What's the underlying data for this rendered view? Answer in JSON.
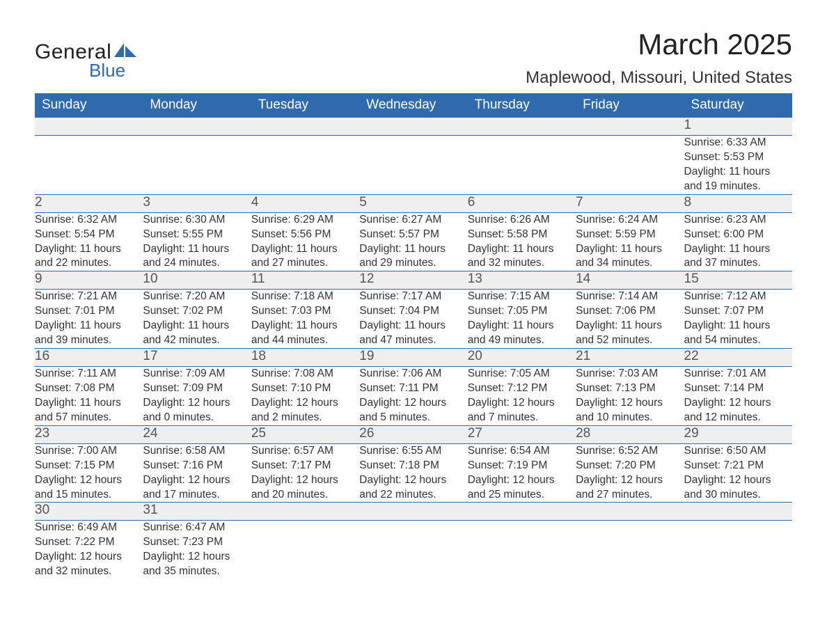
{
  "logo": {
    "primary": "General",
    "secondary": "Blue",
    "shape_color": "#2f6bad"
  },
  "title": "March 2025",
  "location": "Maplewood, Missouri, United States",
  "day_headers": [
    "Sunday",
    "Monday",
    "Tuesday",
    "Wednesday",
    "Thursday",
    "Friday",
    "Saturday"
  ],
  "colors": {
    "header_bg": "#2f6bad",
    "header_text": "#ffffff",
    "daynum_bg": "#efefef",
    "text": "#333333",
    "rule": "#2f6bad"
  },
  "weeks": [
    [
      {
        "n": "",
        "lines": [
          "",
          "",
          "",
          ""
        ]
      },
      {
        "n": "",
        "lines": [
          "",
          "",
          "",
          ""
        ]
      },
      {
        "n": "",
        "lines": [
          "",
          "",
          "",
          ""
        ]
      },
      {
        "n": "",
        "lines": [
          "",
          "",
          "",
          ""
        ]
      },
      {
        "n": "",
        "lines": [
          "",
          "",
          "",
          ""
        ]
      },
      {
        "n": "",
        "lines": [
          "",
          "",
          "",
          ""
        ]
      },
      {
        "n": "1",
        "lines": [
          "Sunrise: 6:33 AM",
          "Sunset: 5:53 PM",
          "Daylight: 11 hours",
          "and 19 minutes."
        ]
      }
    ],
    [
      {
        "n": "2",
        "lines": [
          "Sunrise: 6:32 AM",
          "Sunset: 5:54 PM",
          "Daylight: 11 hours",
          "and 22 minutes."
        ]
      },
      {
        "n": "3",
        "lines": [
          "Sunrise: 6:30 AM",
          "Sunset: 5:55 PM",
          "Daylight: 11 hours",
          "and 24 minutes."
        ]
      },
      {
        "n": "4",
        "lines": [
          "Sunrise: 6:29 AM",
          "Sunset: 5:56 PM",
          "Daylight: 11 hours",
          "and 27 minutes."
        ]
      },
      {
        "n": "5",
        "lines": [
          "Sunrise: 6:27 AM",
          "Sunset: 5:57 PM",
          "Daylight: 11 hours",
          "and 29 minutes."
        ]
      },
      {
        "n": "6",
        "lines": [
          "Sunrise: 6:26 AM",
          "Sunset: 5:58 PM",
          "Daylight: 11 hours",
          "and 32 minutes."
        ]
      },
      {
        "n": "7",
        "lines": [
          "Sunrise: 6:24 AM",
          "Sunset: 5:59 PM",
          "Daylight: 11 hours",
          "and 34 minutes."
        ]
      },
      {
        "n": "8",
        "lines": [
          "Sunrise: 6:23 AM",
          "Sunset: 6:00 PM",
          "Daylight: 11 hours",
          "and 37 minutes."
        ]
      }
    ],
    [
      {
        "n": "9",
        "lines": [
          "Sunrise: 7:21 AM",
          "Sunset: 7:01 PM",
          "Daylight: 11 hours",
          "and 39 minutes."
        ]
      },
      {
        "n": "10",
        "lines": [
          "Sunrise: 7:20 AM",
          "Sunset: 7:02 PM",
          "Daylight: 11 hours",
          "and 42 minutes."
        ]
      },
      {
        "n": "11",
        "lines": [
          "Sunrise: 7:18 AM",
          "Sunset: 7:03 PM",
          "Daylight: 11 hours",
          "and 44 minutes."
        ]
      },
      {
        "n": "12",
        "lines": [
          "Sunrise: 7:17 AM",
          "Sunset: 7:04 PM",
          "Daylight: 11 hours",
          "and 47 minutes."
        ]
      },
      {
        "n": "13",
        "lines": [
          "Sunrise: 7:15 AM",
          "Sunset: 7:05 PM",
          "Daylight: 11 hours",
          "and 49 minutes."
        ]
      },
      {
        "n": "14",
        "lines": [
          "Sunrise: 7:14 AM",
          "Sunset: 7:06 PM",
          "Daylight: 11 hours",
          "and 52 minutes."
        ]
      },
      {
        "n": "15",
        "lines": [
          "Sunrise: 7:12 AM",
          "Sunset: 7:07 PM",
          "Daylight: 11 hours",
          "and 54 minutes."
        ]
      }
    ],
    [
      {
        "n": "16",
        "lines": [
          "Sunrise: 7:11 AM",
          "Sunset: 7:08 PM",
          "Daylight: 11 hours",
          "and 57 minutes."
        ]
      },
      {
        "n": "17",
        "lines": [
          "Sunrise: 7:09 AM",
          "Sunset: 7:09 PM",
          "Daylight: 12 hours",
          "and 0 minutes."
        ]
      },
      {
        "n": "18",
        "lines": [
          "Sunrise: 7:08 AM",
          "Sunset: 7:10 PM",
          "Daylight: 12 hours",
          "and 2 minutes."
        ]
      },
      {
        "n": "19",
        "lines": [
          "Sunrise: 7:06 AM",
          "Sunset: 7:11 PM",
          "Daylight: 12 hours",
          "and 5 minutes."
        ]
      },
      {
        "n": "20",
        "lines": [
          "Sunrise: 7:05 AM",
          "Sunset: 7:12 PM",
          "Daylight: 12 hours",
          "and 7 minutes."
        ]
      },
      {
        "n": "21",
        "lines": [
          "Sunrise: 7:03 AM",
          "Sunset: 7:13 PM",
          "Daylight: 12 hours",
          "and 10 minutes."
        ]
      },
      {
        "n": "22",
        "lines": [
          "Sunrise: 7:01 AM",
          "Sunset: 7:14 PM",
          "Daylight: 12 hours",
          "and 12 minutes."
        ]
      }
    ],
    [
      {
        "n": "23",
        "lines": [
          "Sunrise: 7:00 AM",
          "Sunset: 7:15 PM",
          "Daylight: 12 hours",
          "and 15 minutes."
        ]
      },
      {
        "n": "24",
        "lines": [
          "Sunrise: 6:58 AM",
          "Sunset: 7:16 PM",
          "Daylight: 12 hours",
          "and 17 minutes."
        ]
      },
      {
        "n": "25",
        "lines": [
          "Sunrise: 6:57 AM",
          "Sunset: 7:17 PM",
          "Daylight: 12 hours",
          "and 20 minutes."
        ]
      },
      {
        "n": "26",
        "lines": [
          "Sunrise: 6:55 AM",
          "Sunset: 7:18 PM",
          "Daylight: 12 hours",
          "and 22 minutes."
        ]
      },
      {
        "n": "27",
        "lines": [
          "Sunrise: 6:54 AM",
          "Sunset: 7:19 PM",
          "Daylight: 12 hours",
          "and 25 minutes."
        ]
      },
      {
        "n": "28",
        "lines": [
          "Sunrise: 6:52 AM",
          "Sunset: 7:20 PM",
          "Daylight: 12 hours",
          "and 27 minutes."
        ]
      },
      {
        "n": "29",
        "lines": [
          "Sunrise: 6:50 AM",
          "Sunset: 7:21 PM",
          "Daylight: 12 hours",
          "and 30 minutes."
        ]
      }
    ],
    [
      {
        "n": "30",
        "lines": [
          "Sunrise: 6:49 AM",
          "Sunset: 7:22 PM",
          "Daylight: 12 hours",
          "and 32 minutes."
        ]
      },
      {
        "n": "31",
        "lines": [
          "Sunrise: 6:47 AM",
          "Sunset: 7:23 PM",
          "Daylight: 12 hours",
          "and 35 minutes."
        ]
      },
      {
        "n": "",
        "lines": [
          "",
          "",
          "",
          ""
        ]
      },
      {
        "n": "",
        "lines": [
          "",
          "",
          "",
          ""
        ]
      },
      {
        "n": "",
        "lines": [
          "",
          "",
          "",
          ""
        ]
      },
      {
        "n": "",
        "lines": [
          "",
          "",
          "",
          ""
        ]
      },
      {
        "n": "",
        "lines": [
          "",
          "",
          "",
          ""
        ]
      }
    ]
  ]
}
